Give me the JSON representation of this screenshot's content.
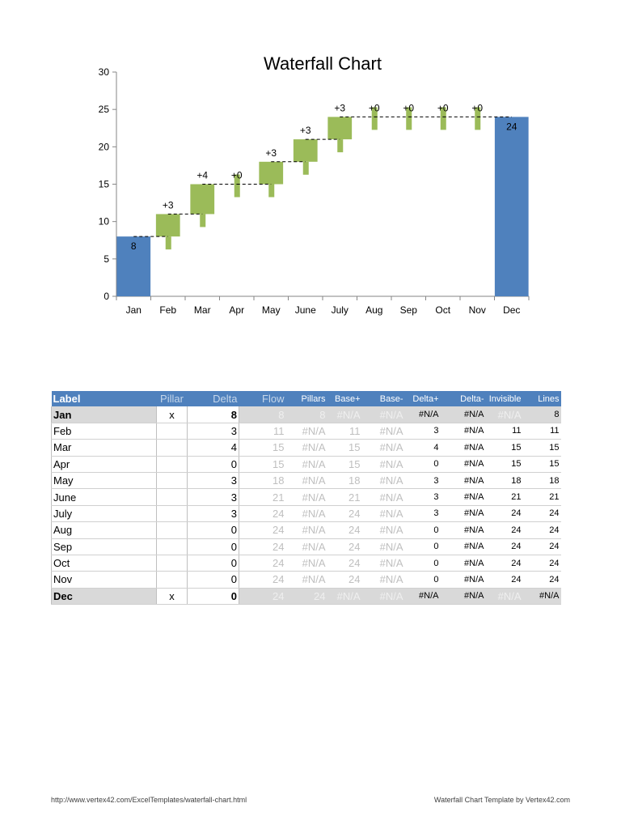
{
  "chart_data": {
    "type": "bar",
    "subtype": "waterfall",
    "title": "Waterfall Chart",
    "categories": [
      "Jan",
      "Feb",
      "Mar",
      "Apr",
      "May",
      "June",
      "July",
      "Aug",
      "Sep",
      "Oct",
      "Nov",
      "Dec"
    ],
    "ylim": [
      0,
      30
    ],
    "yticks": [
      0,
      5,
      10,
      15,
      20,
      25,
      30
    ],
    "pillars": [
      {
        "category": "Jan",
        "value": 8,
        "label": "8"
      },
      {
        "category": "Dec",
        "value": 24,
        "label": "24"
      }
    ],
    "deltas": [
      {
        "category": "Feb",
        "base": 8,
        "value": 3,
        "label": "+3"
      },
      {
        "category": "Mar",
        "base": 11,
        "value": 4,
        "label": "+4"
      },
      {
        "category": "Apr",
        "base": 15,
        "value": 0,
        "label": "+0"
      },
      {
        "category": "May",
        "base": 15,
        "value": 3,
        "label": "+3"
      },
      {
        "category": "June",
        "base": 18,
        "value": 3,
        "label": "+3"
      },
      {
        "category": "July",
        "base": 21,
        "value": 3,
        "label": "+3"
      },
      {
        "category": "Aug",
        "base": 24,
        "value": 0,
        "label": "+0"
      },
      {
        "category": "Sep",
        "base": 24,
        "value": 0,
        "label": "+0"
      },
      {
        "category": "Oct",
        "base": 24,
        "value": 0,
        "label": "+0"
      },
      {
        "category": "Nov",
        "base": 24,
        "value": 0,
        "label": "+0"
      }
    ],
    "lines": [
      8,
      11,
      15,
      15,
      18,
      21,
      24,
      24,
      24,
      24,
      24
    ],
    "grid": false,
    "legend": "none",
    "colors": {
      "pillar": "#4f81bd",
      "delta": "#9bbb59",
      "line": "#000000"
    }
  },
  "table": {
    "headers": [
      "Label",
      "Pillar",
      "Delta",
      "Flow",
      "Pillars",
      "Base+",
      "Base-",
      "Delta+",
      "Delta-",
      "Invisible",
      "Lines"
    ],
    "rows": [
      {
        "label": "Jan",
        "pillar": "x",
        "delta": "8",
        "flow": "8",
        "pillars": "8",
        "base_plus": "#N/A",
        "base_minus": "#N/A",
        "delta_plus": "#N/A",
        "delta_minus": "#N/A",
        "invisible": "#N/A",
        "lines": "8",
        "is_pillar": true
      },
      {
        "label": "Feb",
        "pillar": "",
        "delta": "3",
        "flow": "11",
        "pillars": "#N/A",
        "base_plus": "11",
        "base_minus": "#N/A",
        "delta_plus": "3",
        "delta_minus": "#N/A",
        "invisible": "11",
        "lines": "11",
        "is_pillar": false
      },
      {
        "label": "Mar",
        "pillar": "",
        "delta": "4",
        "flow": "15",
        "pillars": "#N/A",
        "base_plus": "15",
        "base_minus": "#N/A",
        "delta_plus": "4",
        "delta_minus": "#N/A",
        "invisible": "15",
        "lines": "15",
        "is_pillar": false
      },
      {
        "label": "Apr",
        "pillar": "",
        "delta": "0",
        "flow": "15",
        "pillars": "#N/A",
        "base_plus": "15",
        "base_minus": "#N/A",
        "delta_plus": "0",
        "delta_minus": "#N/A",
        "invisible": "15",
        "lines": "15",
        "is_pillar": false
      },
      {
        "label": "May",
        "pillar": "",
        "delta": "3",
        "flow": "18",
        "pillars": "#N/A",
        "base_plus": "18",
        "base_minus": "#N/A",
        "delta_plus": "3",
        "delta_minus": "#N/A",
        "invisible": "18",
        "lines": "18",
        "is_pillar": false
      },
      {
        "label": "June",
        "pillar": "",
        "delta": "3",
        "flow": "21",
        "pillars": "#N/A",
        "base_plus": "21",
        "base_minus": "#N/A",
        "delta_plus": "3",
        "delta_minus": "#N/A",
        "invisible": "21",
        "lines": "21",
        "is_pillar": false
      },
      {
        "label": "July",
        "pillar": "",
        "delta": "3",
        "flow": "24",
        "pillars": "#N/A",
        "base_plus": "24",
        "base_minus": "#N/A",
        "delta_plus": "3",
        "delta_minus": "#N/A",
        "invisible": "24",
        "lines": "24",
        "is_pillar": false
      },
      {
        "label": "Aug",
        "pillar": "",
        "delta": "0",
        "flow": "24",
        "pillars": "#N/A",
        "base_plus": "24",
        "base_minus": "#N/A",
        "delta_plus": "0",
        "delta_minus": "#N/A",
        "invisible": "24",
        "lines": "24",
        "is_pillar": false
      },
      {
        "label": "Sep",
        "pillar": "",
        "delta": "0",
        "flow": "24",
        "pillars": "#N/A",
        "base_plus": "24",
        "base_minus": "#N/A",
        "delta_plus": "0",
        "delta_minus": "#N/A",
        "invisible": "24",
        "lines": "24",
        "is_pillar": false
      },
      {
        "label": "Oct",
        "pillar": "",
        "delta": "0",
        "flow": "24",
        "pillars": "#N/A",
        "base_plus": "24",
        "base_minus": "#N/A",
        "delta_plus": "0",
        "delta_minus": "#N/A",
        "invisible": "24",
        "lines": "24",
        "is_pillar": false
      },
      {
        "label": "Nov",
        "pillar": "",
        "delta": "0",
        "flow": "24",
        "pillars": "#N/A",
        "base_plus": "24",
        "base_minus": "#N/A",
        "delta_plus": "0",
        "delta_minus": "#N/A",
        "invisible": "24",
        "lines": "24",
        "is_pillar": false
      },
      {
        "label": "Dec",
        "pillar": "x",
        "delta": "0",
        "flow": "24",
        "pillars": "24",
        "base_plus": "#N/A",
        "base_minus": "#N/A",
        "delta_plus": "#N/A",
        "delta_minus": "#N/A",
        "invisible": "#N/A",
        "lines": "#N/A",
        "is_pillar": true
      }
    ]
  },
  "footer": {
    "left": "http://www.vertex42.com/ExcelTemplates/waterfall-chart.html",
    "right": "Waterfall Chart Template by Vertex42.com"
  }
}
